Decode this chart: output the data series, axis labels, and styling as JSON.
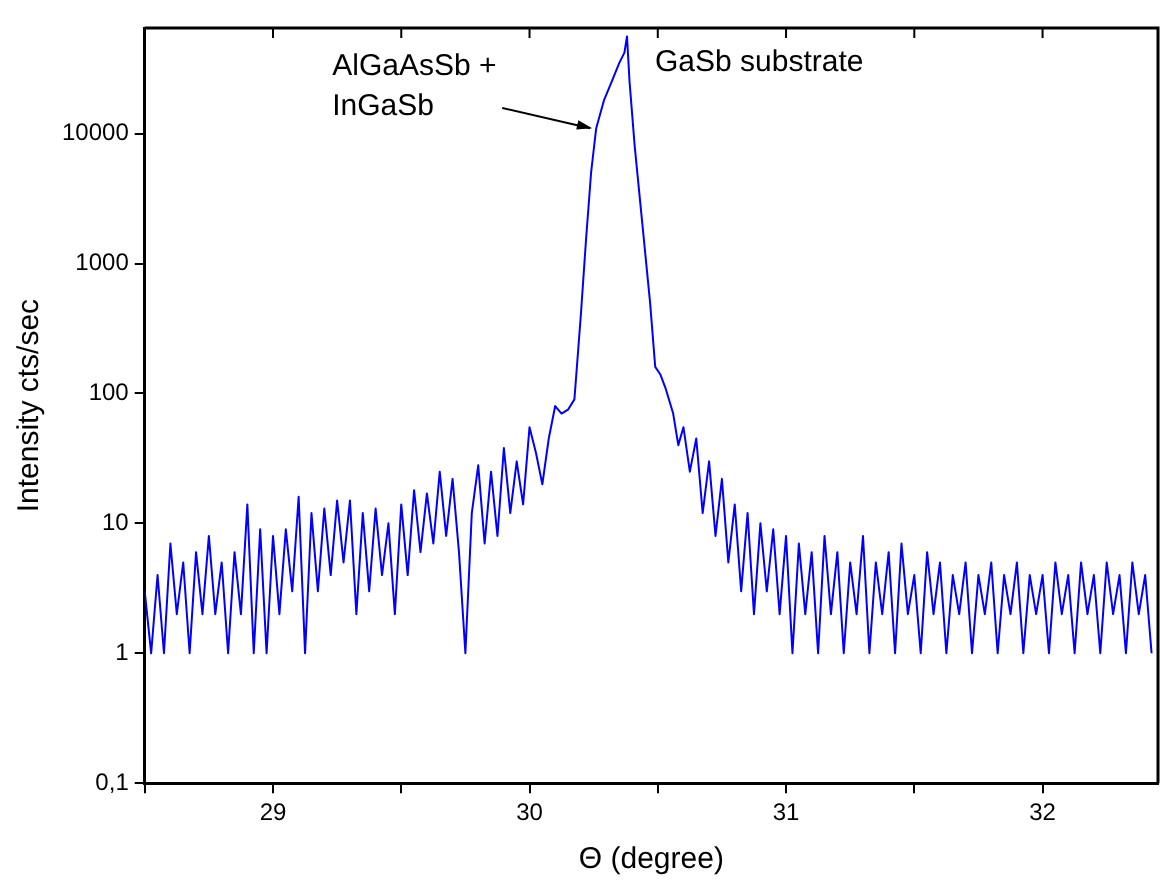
{
  "chart_data": {
    "type": "line",
    "xlabel": "Θ (degree)",
    "ylabel": "Intensity cts/sec",
    "log": "y",
    "grid": false,
    "legend": false,
    "marker": "none",
    "line_style": "solid",
    "xlim": [
      28.5,
      32.45
    ],
    "ylim": [
      0.1,
      65000
    ],
    "xticks": [
      {
        "value": 28.5,
        "label": null
      },
      29,
      {
        "value": 29.5,
        "label": null
      },
      30,
      {
        "value": 30.5,
        "label": null
      },
      31,
      {
        "value": 31.5,
        "label": null
      },
      32
    ],
    "yticks": [
      {
        "value": 0.1,
        "label": "0,1"
      },
      1,
      10,
      100,
      1000,
      10000
    ],
    "annotations": [
      {
        "text": "AlGaAsSb +\nInGaSb",
        "x": 30.26,
        "y": 11000
      },
      {
        "text": "GaSb substrate",
        "x": 30.38,
        "y": 56000
      }
    ],
    "series": [
      {
        "color": "#0000ff",
        "x": [
          28.5,
          28.525,
          28.55,
          28.575,
          28.6,
          28.625,
          28.65,
          28.675,
          28.7,
          28.725,
          28.75,
          28.775,
          28.8,
          28.825,
          28.85,
          28.875,
          28.9,
          28.925,
          28.95,
          28.975,
          29.0,
          29.025,
          29.05,
          29.075,
          29.1,
          29.125,
          29.15,
          29.175,
          29.2,
          29.225,
          29.25,
          29.275,
          29.3,
          29.325,
          29.35,
          29.375,
          29.4,
          29.425,
          29.45,
          29.475,
          29.5,
          29.525,
          29.55,
          29.575,
          29.6,
          29.625,
          29.65,
          29.675,
          29.7,
          29.725,
          29.75,
          29.775,
          29.8,
          29.825,
          29.85,
          29.875,
          29.9,
          29.925,
          29.95,
          29.975,
          30.0,
          30.025,
          30.05,
          30.075,
          30.1,
          30.125,
          30.15,
          30.175,
          30.2,
          30.22,
          30.24,
          30.26,
          30.29,
          30.32,
          30.35,
          30.37,
          30.38,
          30.39,
          30.41,
          30.44,
          30.47,
          30.49,
          30.51,
          30.53,
          30.56,
          30.58,
          30.6,
          30.625,
          30.65,
          30.675,
          30.7,
          30.725,
          30.75,
          30.775,
          30.8,
          30.825,
          30.85,
          30.875,
          30.9,
          30.925,
          30.95,
          30.975,
          31.0,
          31.025,
          31.05,
          31.075,
          31.1,
          31.125,
          31.15,
          31.175,
          31.2,
          31.225,
          31.25,
          31.275,
          31.3,
          31.325,
          31.35,
          31.375,
          31.4,
          31.425,
          31.45,
          31.475,
          31.5,
          31.525,
          31.55,
          31.575,
          31.6,
          31.625,
          31.65,
          31.675,
          31.7,
          31.725,
          31.75,
          31.775,
          31.8,
          31.825,
          31.85,
          31.875,
          31.9,
          31.925,
          31.95,
          31.975,
          32.0,
          32.025,
          32.05,
          32.075,
          32.1,
          32.125,
          32.15,
          32.175,
          32.2,
          32.225,
          32.25,
          32.275,
          32.3,
          32.325,
          32.35,
          32.375,
          32.4,
          32.425
        ],
        "values": [
          3,
          1,
          4,
          1,
          7,
          2,
          5,
          1,
          6,
          2,
          8,
          2,
          5,
          1,
          6,
          2,
          14,
          1,
          9,
          1,
          8,
          2,
          9,
          3,
          16,
          1,
          12,
          3,
          13,
          4,
          15,
          5,
          15,
          2,
          12,
          3,
          13,
          4,
          10,
          2,
          14,
          4,
          18,
          6,
          17,
          7,
          25,
          8,
          22,
          6,
          1,
          12,
          28,
          7,
          25,
          8,
          38,
          12,
          30,
          14,
          55,
          35,
          20,
          45,
          80,
          70,
          75,
          90,
          400,
          1500,
          5000,
          11000,
          18000,
          25000,
          35000,
          42000,
          56000,
          25000,
          8000,
          2000,
          500,
          160,
          140,
          110,
          70,
          40,
          55,
          25,
          45,
          12,
          30,
          8,
          22,
          5,
          14,
          3,
          12,
          2,
          10,
          3,
          9,
          2,
          8,
          1,
          7,
          2,
          6,
          1,
          8,
          2,
          6,
          1,
          5,
          2,
          8,
          1,
          5,
          2,
          6,
          1,
          7,
          2,
          4,
          1,
          6,
          2,
          5,
          1,
          4,
          2,
          5,
          1,
          4,
          2,
          5,
          1,
          4,
          2,
          5,
          1,
          4,
          2,
          4,
          1,
          5,
          2,
          4,
          1,
          5,
          2,
          4,
          1,
          5,
          2,
          4,
          1,
          5,
          2,
          4,
          1
        ]
      }
    ]
  }
}
